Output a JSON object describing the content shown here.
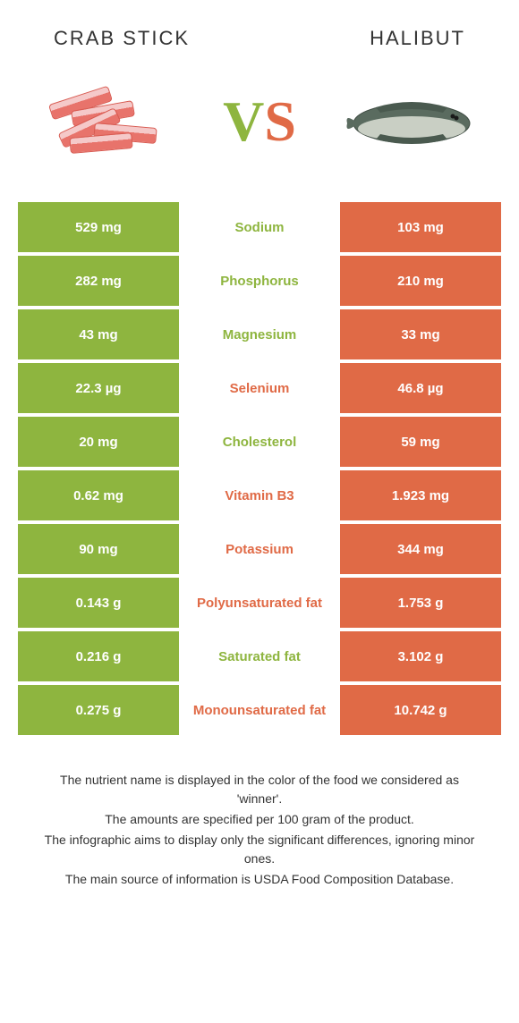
{
  "header": {
    "left_title": "Crab stick",
    "right_title": "Halibut"
  },
  "vs": {
    "v": "V",
    "s": "S"
  },
  "colors": {
    "green": "#8eb53f",
    "orange": "#e06a46",
    "text": "#333333",
    "white": "#ffffff"
  },
  "rows": [
    {
      "left": "529 mg",
      "label": "Sodium",
      "right": "103 mg",
      "winner": "left"
    },
    {
      "left": "282 mg",
      "label": "Phosphorus",
      "right": "210 mg",
      "winner": "left"
    },
    {
      "left": "43 mg",
      "label": "Magnesium",
      "right": "33 mg",
      "winner": "left"
    },
    {
      "left": "22.3 µg",
      "label": "Selenium",
      "right": "46.8 µg",
      "winner": "right"
    },
    {
      "left": "20 mg",
      "label": "Cholesterol",
      "right": "59 mg",
      "winner": "left"
    },
    {
      "left": "0.62 mg",
      "label": "Vitamin B3",
      "right": "1.923 mg",
      "winner": "right"
    },
    {
      "left": "90 mg",
      "label": "Potassium",
      "right": "344 mg",
      "winner": "right"
    },
    {
      "left": "0.143 g",
      "label": "Polyunsaturated fat",
      "right": "1.753 g",
      "winner": "right"
    },
    {
      "left": "0.216 g",
      "label": "Saturated fat",
      "right": "3.102 g",
      "winner": "left"
    },
    {
      "left": "0.275 g",
      "label": "Monounsaturated fat",
      "right": "10.742 g",
      "winner": "right"
    }
  ],
  "footer": {
    "line1": "The nutrient name is displayed in the color of the food we considered as 'winner'.",
    "line2": "The amounts are specified per 100 gram of the product.",
    "line3": "The infographic aims to display only the significant differences, ignoring minor ones.",
    "line4": "The main source of information is USDA Food Composition Database."
  }
}
